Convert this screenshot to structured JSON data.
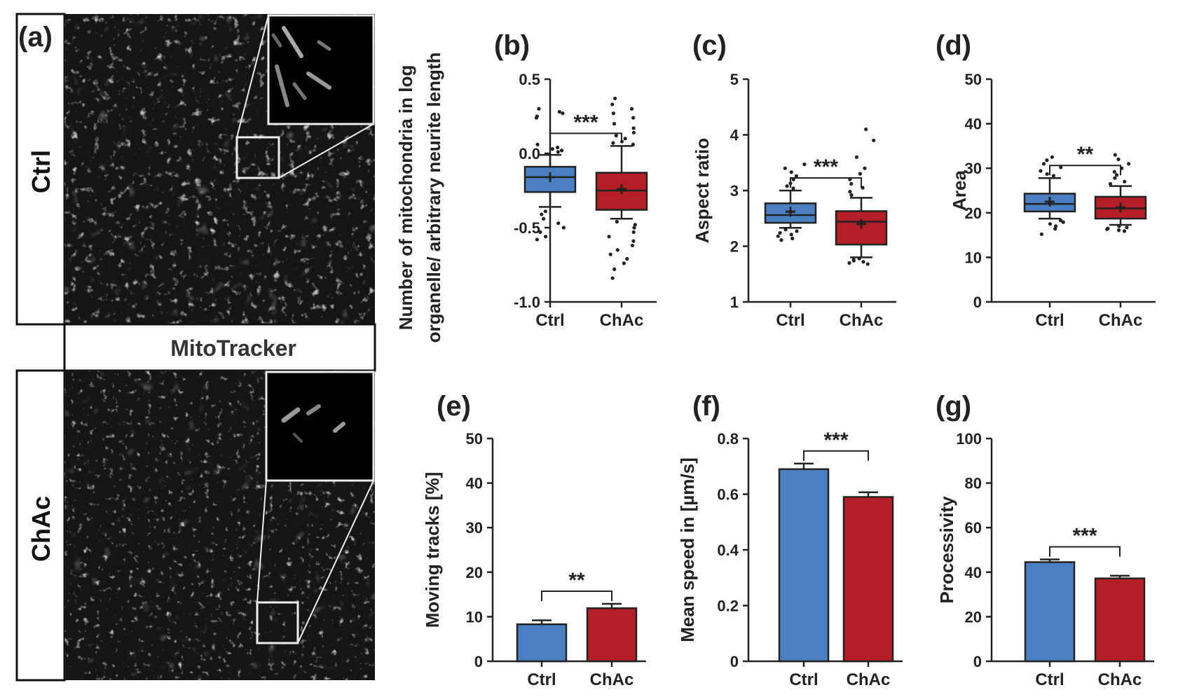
{
  "colors": {
    "ctrl": "#4a7fc1",
    "chac": "#b51e26",
    "axis": "#222222"
  },
  "panel_a": {
    "label": "(a)",
    "row_top_label": "Ctrl",
    "row_bottom_label": "ChAc",
    "middle_label": "MitoTracker"
  },
  "chart_data": [
    {
      "id": "b",
      "panel_label": "(b)",
      "type": "box",
      "ylabel_lines": [
        "Number of mitochondria in log",
        "organelle/ arbitrary neurite length"
      ],
      "ylim": [
        -1.0,
        0.5
      ],
      "yticks": [
        0.5,
        0.0,
        -0.5,
        -1.0
      ],
      "ytick_labels": [
        "0.5",
        "0.0",
        "-0.5",
        "-1.0"
      ],
      "categories": [
        "Ctrl",
        "ChAc"
      ],
      "boxes": [
        {
          "q1": -0.26,
          "median": -0.16,
          "q3": -0.09,
          "whisker_low": -0.36,
          "whisker_high": -0.01,
          "mean": -0.16,
          "outliers": [
            0.3,
            0.28,
            0.27,
            0.25,
            0.24,
            0.06,
            0.04,
            0.03,
            0.02,
            0.01,
            -0.39,
            -0.41,
            -0.44,
            -0.47,
            -0.5,
            -0.53,
            -0.56,
            -0.58
          ]
        },
        {
          "q1": -0.38,
          "median": -0.25,
          "q3": -0.13,
          "whisker_low": -0.44,
          "whisker_high": 0.05,
          "mean": -0.24,
          "outliers": [
            0.37,
            0.33,
            0.3,
            0.27,
            0.24,
            0.2,
            0.17,
            0.14,
            0.12,
            0.1,
            0.08,
            0.07,
            0.06,
            -0.46,
            -0.48,
            -0.5,
            -0.53,
            -0.56,
            -0.59,
            -0.62,
            -0.65,
            -0.68,
            -0.71,
            -0.74,
            -0.78,
            -0.84
          ]
        }
      ],
      "significance": "***"
    },
    {
      "id": "c",
      "panel_label": "(c)",
      "type": "box",
      "ylabel_lines": [
        "Aspect ratio"
      ],
      "ylim": [
        1,
        5
      ],
      "yticks": [
        5,
        4,
        3,
        2,
        1
      ],
      "ytick_labels": [
        "5",
        "4",
        "3",
        "2",
        "1"
      ],
      "categories": [
        "Ctrl",
        "ChAc"
      ],
      "boxes": [
        {
          "q1": 2.42,
          "median": 2.56,
          "q3": 2.77,
          "whisker_low": 2.33,
          "whisker_high": 3.0,
          "mean": 2.62,
          "outliers": [
            3.47,
            3.4,
            3.33,
            3.26,
            3.2,
            3.13,
            3.08,
            3.04,
            2.3,
            2.27,
            2.24,
            2.21,
            2.18,
            2.14,
            2.11
          ]
        },
        {
          "q1": 2.03,
          "median": 2.44,
          "q3": 2.63,
          "whisker_low": 1.8,
          "whisker_high": 2.87,
          "mean": 2.4,
          "outliers": [
            4.1,
            3.9,
            3.6,
            3.4,
            3.3,
            3.2,
            3.12,
            3.05,
            2.98,
            2.92,
            1.78,
            1.76,
            1.74,
            1.72,
            1.7,
            1.68
          ]
        }
      ],
      "significance": "***"
    },
    {
      "id": "d",
      "panel_label": "(d)",
      "type": "box",
      "ylabel_lines": [
        "Area"
      ],
      "ylim": [
        0,
        50
      ],
      "yticks": [
        50,
        40,
        30,
        20,
        10,
        0
      ],
      "ytick_labels": [
        "50",
        "40",
        "30",
        "20",
        "10",
        "0"
      ],
      "categories": [
        "Ctrl",
        "ChAc"
      ],
      "boxes": [
        {
          "q1": 20.3,
          "median": 22.0,
          "q3": 24.3,
          "whisker_low": 18.7,
          "whisker_high": 27.8,
          "mean": 22.5,
          "outliers": [
            32.5,
            31.8,
            31.0,
            30.2,
            29.4,
            28.7,
            28.3,
            18.3,
            17.9,
            17.5,
            17.0,
            16.4,
            15.2
          ]
        },
        {
          "q1": 18.7,
          "median": 21.0,
          "q3": 23.6,
          "whisker_low": 17.3,
          "whisker_high": 26.0,
          "mean": 21.2,
          "outliers": [
            33.0,
            32.0,
            31.0,
            30.0,
            29.2,
            28.5,
            27.8,
            27.0,
            26.5,
            17.0,
            16.7,
            16.5,
            16.3,
            16.1,
            15.9
          ]
        }
      ],
      "significance": "**"
    },
    {
      "id": "e",
      "panel_label": "(e)",
      "type": "bar",
      "ylabel_lines": [
        "Moving tracks [%]"
      ],
      "ylim": [
        0,
        50
      ],
      "yticks": [
        50,
        40,
        30,
        20,
        10,
        0
      ],
      "ytick_labels": [
        "50",
        "40",
        "30",
        "20",
        "10",
        "0"
      ],
      "categories": [
        "Ctrl",
        "ChAc"
      ],
      "values": [
        8.3,
        11.9
      ],
      "errors": [
        0.9,
        1.0
      ],
      "significance": "**"
    },
    {
      "id": "f",
      "panel_label": "(f)",
      "type": "bar",
      "ylabel_lines": [
        "Mean speed in [µm/s]"
      ],
      "ylim": [
        0,
        0.8
      ],
      "yticks": [
        0.8,
        0.6,
        0.4,
        0.2,
        0
      ],
      "ytick_labels": [
        "0.8",
        "0.6",
        "0.4",
        "0.2",
        "0"
      ],
      "categories": [
        "Ctrl",
        "ChAc"
      ],
      "values": [
        0.69,
        0.59
      ],
      "errors": [
        0.02,
        0.017
      ],
      "significance": "***"
    },
    {
      "id": "g",
      "panel_label": "(g)",
      "type": "bar",
      "ylabel_lines": [
        "Processivity"
      ],
      "ylim": [
        0,
        100
      ],
      "yticks": [
        100,
        80,
        60,
        40,
        20,
        0
      ],
      "ytick_labels": [
        "100",
        "80",
        "60",
        "40",
        "20",
        "0"
      ],
      "categories": [
        "Ctrl",
        "ChAc"
      ],
      "values": [
        44.5,
        37.2
      ],
      "errors": [
        1.2,
        1.2
      ],
      "significance": "***"
    }
  ]
}
